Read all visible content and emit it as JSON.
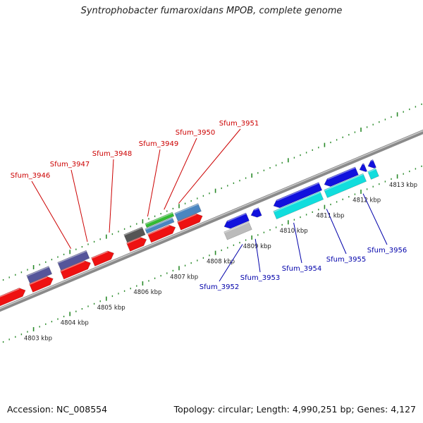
{
  "header": {
    "title": "Syntrophobacter fumaroxidans MPOB, complete genome"
  },
  "footer": {
    "accession": "Accession: NC_008554",
    "summary": "Topology: circular; Length: 4,990,251 bp; Genes: 4,127"
  },
  "colors": {
    "forward_cds": "#ee1111",
    "reverse_cds": "#1111dd",
    "slate_gene": "#55559a",
    "dark_gene": "#555555",
    "green_gene": "#33bb33",
    "steelblue_gene": "#4a86c0",
    "cyan_gene": "#11dddd",
    "grey_gene": "#bbbbbb",
    "backbone": "#8a8a8a",
    "tick": "#2a8a2a",
    "top_label": "#cc0000",
    "bottom_label": "#0000aa"
  },
  "scale": {
    "unit": "kbp",
    "ticks": [
      {
        "kbp": 4803,
        "label": "4803 kbp"
      },
      {
        "kbp": 4804,
        "label": "4804 kbp"
      },
      {
        "kbp": 4805,
        "label": "4805 kbp"
      },
      {
        "kbp": 4806,
        "label": "4806 kbp"
      },
      {
        "kbp": 4807,
        "label": "4807 kbp"
      },
      {
        "kbp": 4808,
        "label": "4808 kbp"
      },
      {
        "kbp": 4809,
        "label": "4809 kbp"
      },
      {
        "kbp": 4810,
        "label": "4810 kbp"
      },
      {
        "kbp": 4811,
        "label": "4811 kbp"
      },
      {
        "kbp": 4812,
        "label": "4812 kbp"
      },
      {
        "kbp": 4813,
        "label": "4813 kbp"
      }
    ]
  },
  "genes_top": [
    {
      "name": "Sfum_3946",
      "anchor_kbp": 4803.9
    },
    {
      "name": "Sfum_3947",
      "anchor_kbp": 4804.35
    },
    {
      "name": "Sfum_3948",
      "anchor_kbp": 4804.95
    },
    {
      "name": "Sfum_3949",
      "anchor_kbp": 4806.0
    },
    {
      "name": "Sfum_3950",
      "anchor_kbp": 4806.45
    },
    {
      "name": "Sfum_3951",
      "anchor_kbp": 4806.85
    }
  ],
  "genes_bottom": [
    {
      "name": "Sfum_3952",
      "anchor_kbp": 4808.6
    },
    {
      "name": "Sfum_3953",
      "anchor_kbp": 4808.95
    },
    {
      "name": "Sfum_3954",
      "anchor_kbp": 4810.0
    },
    {
      "name": "Sfum_3955",
      "anchor_kbp": 4810.9
    },
    {
      "name": "Sfum_3956",
      "anchor_kbp": 4811.9
    }
  ]
}
